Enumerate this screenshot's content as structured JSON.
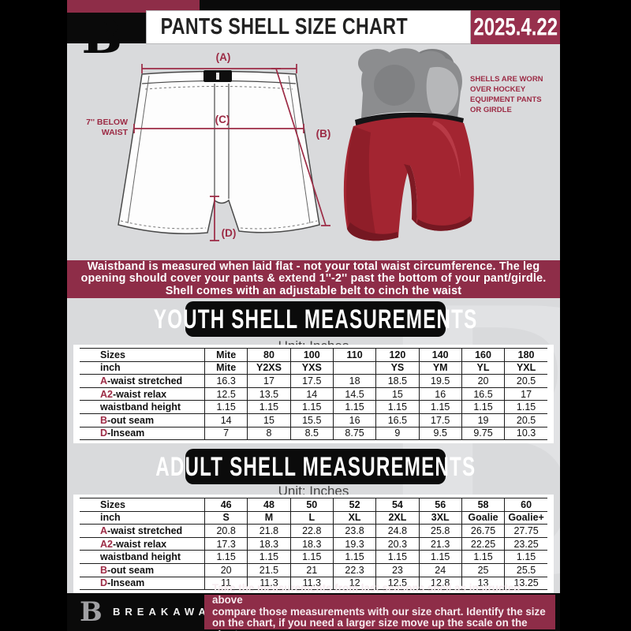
{
  "header": {
    "title": "PANTS SHELL SIZE CHART",
    "date": "2025.4.22",
    "logo_letter": "B"
  },
  "diagram": {
    "label_a": "(A)",
    "label_b": "(B)",
    "label_c": "(C)",
    "label_d": "(D)",
    "below_waist_lines": [
      "7'' BELOW",
      "WAIST"
    ],
    "equipment_note_lines": [
      "SHELLS ARE WORN",
      "OVER HOCKEY",
      "EQUIPMENT PANTS",
      "OR GIRDLE"
    ]
  },
  "info_banner": {
    "lines": [
      "Waistband is measured when laid flat - not your total waist circumference. The leg",
      "opening should cover your pants & extend 1''-2'' past the bottom of your pant/girdle.",
      "Shell comes with an adjustable belt to cinch the waist"
    ]
  },
  "youth": {
    "heading": "YOUTH SHELL MEASUREMENTS",
    "unit": "Unit: Inches",
    "table": {
      "rows": [
        {
          "prefix": "",
          "label": "Sizes",
          "header": true,
          "values": [
            "Mite",
            "80",
            "100",
            "110",
            "120",
            "140",
            "160",
            "180"
          ]
        },
        {
          "prefix": "",
          "label": "inch",
          "header": true,
          "values": [
            "Mite",
            "Y2XS",
            "YXS",
            "",
            "YS",
            "YM",
            "YL",
            "YXL"
          ]
        },
        {
          "prefix": "A",
          "label": "-waist stretched",
          "values": [
            "16.3",
            "17",
            "17.5",
            "18",
            "18.5",
            "19.5",
            "20",
            "20.5"
          ]
        },
        {
          "prefix": "A2",
          "label": "-waist relax",
          "values": [
            "12.5",
            "13.5",
            "14",
            "14.5",
            "15",
            "16",
            "16.5",
            "17"
          ]
        },
        {
          "prefix": "",
          "label": "waistband height",
          "values": [
            "1.15",
            "1.15",
            "1.15",
            "1.15",
            "1.15",
            "1.15",
            "1.15",
            "1.15"
          ]
        },
        {
          "prefix": "B",
          "label": "-out seam",
          "values": [
            "14",
            "15",
            "15.5",
            "16",
            "16.5",
            "17.5",
            "19",
            "20.5"
          ]
        },
        {
          "prefix": "D",
          "label": "-Inseam",
          "values": [
            "7",
            "8",
            "8.5",
            "8.75",
            "9",
            "9.5",
            "9.75",
            "10.3"
          ]
        }
      ]
    }
  },
  "adult": {
    "heading": "ADULT SHELL MEASUREMENTS",
    "unit": "Unit: Inches",
    "table": {
      "rows": [
        {
          "prefix": "",
          "label": "Sizes",
          "header": true,
          "values": [
            "46",
            "48",
            "50",
            "52",
            "54",
            "56",
            "58",
            "60"
          ]
        },
        {
          "prefix": "",
          "label": "inch",
          "header": true,
          "values": [
            "S",
            "M",
            "L",
            "XL",
            "2XL",
            "3XL",
            "Goalie",
            "Goalie+"
          ]
        },
        {
          "prefix": "A",
          "label": "-waist stretched",
          "values": [
            "20.8",
            "21.8",
            "22.8",
            "23.8",
            "24.8",
            "25.8",
            "26.75",
            "27.75"
          ]
        },
        {
          "prefix": "A2",
          "label": "-waist relax",
          "values": [
            "17.3",
            "18.3",
            "18.3",
            "19.3",
            "20.3",
            "21.3",
            "22.25",
            "23.25"
          ]
        },
        {
          "prefix": "",
          "label": "waistband height",
          "values": [
            "1.15",
            "1.15",
            "1.15",
            "1.15",
            "1.15",
            "1.15",
            "1.15",
            "1.15"
          ]
        },
        {
          "prefix": "B",
          "label": "-out seam",
          "values": [
            "20",
            "21.5",
            "21",
            "22.3",
            "23",
            "24",
            "25",
            "25.5"
          ]
        },
        {
          "prefix": "D",
          "label": "-Inseam",
          "values": [
            "11",
            "11.3",
            "11.3",
            "12",
            "12.5",
            "12.8",
            "13",
            "13.25"
          ]
        }
      ]
    }
  },
  "footer": {
    "brand": "BREAKAWAY",
    "logo_letter": "B",
    "note_lines": [
      "Take the measurements from last seasons shell as instructed above",
      "compare those measurements  with our size chart. Identify the size",
      "on the chart, if you need a larger size move up the scale on the chart"
    ]
  },
  "colors": {
    "accent_maroon": "#8e2d48",
    "date_box_maroon": "#97304d",
    "measure_line_maroon": "#9c2b45",
    "shell_red": "#a32531",
    "page_gray": "#d9dadc",
    "bar_black": "#0a0a0a",
    "table_line": "#1d1d1d"
  }
}
